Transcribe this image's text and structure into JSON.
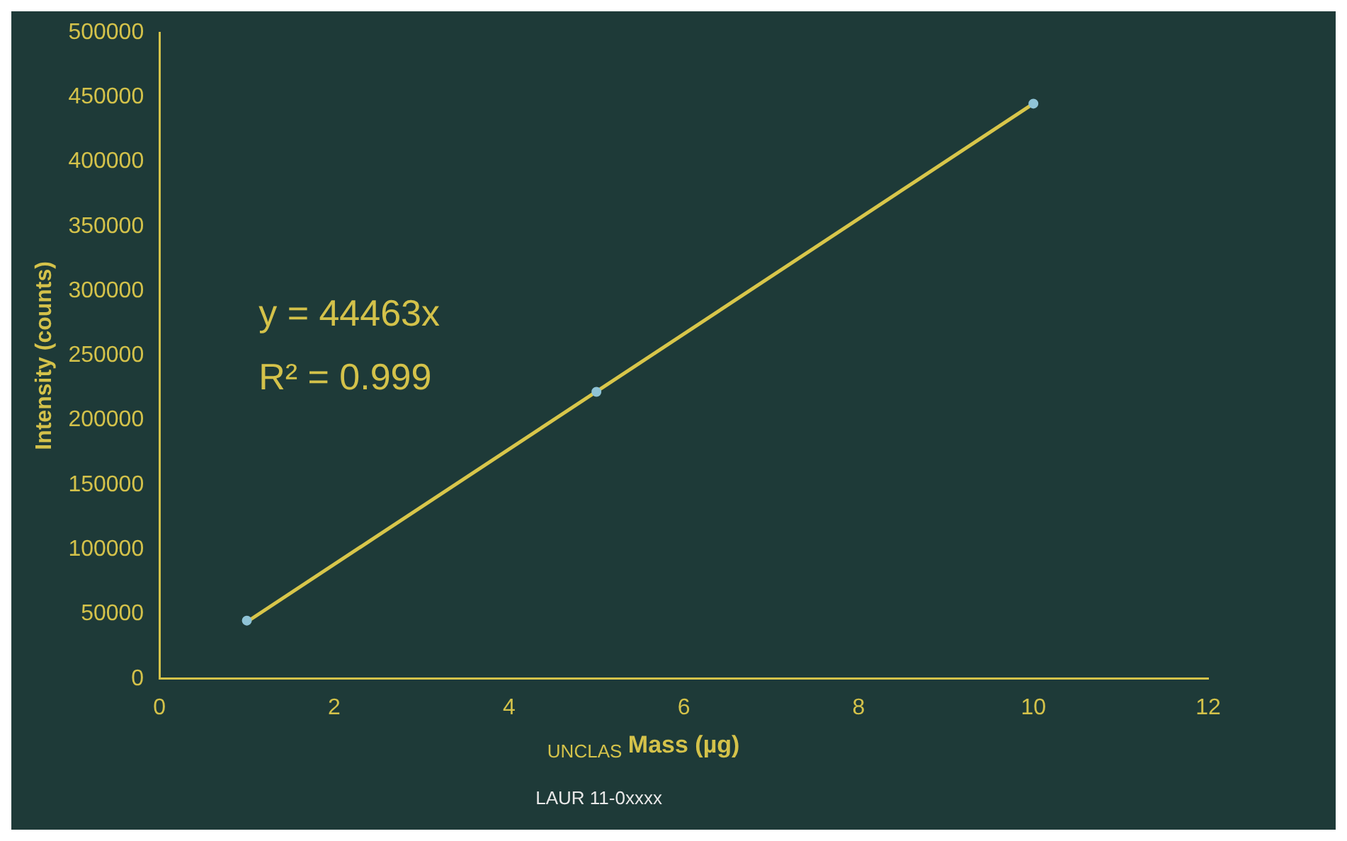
{
  "chart_data": {
    "type": "scatter",
    "xlabel": "Mass (µg)",
    "ylabel": "Intensity (counts)",
    "series": [
      {
        "type": "scatter",
        "x": [
          1,
          5,
          10
        ],
        "values": [
          45000,
          222000,
          445000
        ],
        "color": "#8fc3d6",
        "marker": "circle"
      },
      {
        "type": "line",
        "x": [
          1,
          10
        ],
        "values": [
          44000,
          445000
        ],
        "color": "#d8c64a",
        "marker": "none",
        "line_style": "solid"
      }
    ],
    "xlim": [
      0,
      12
    ],
    "xticks": [
      0,
      2,
      4,
      6,
      8,
      10,
      12
    ],
    "ylim": [
      0,
      500000
    ],
    "yticks": [
      0,
      50000,
      100000,
      150000,
      200000,
      250000,
      300000,
      350000,
      400000,
      450000,
      500000
    ],
    "annotations": [
      "y = 44463x",
      "R² = 0.999",
      "UNCLAS",
      "LAUR 11-0xxxx"
    ],
    "grid": false,
    "legend": false
  }
}
